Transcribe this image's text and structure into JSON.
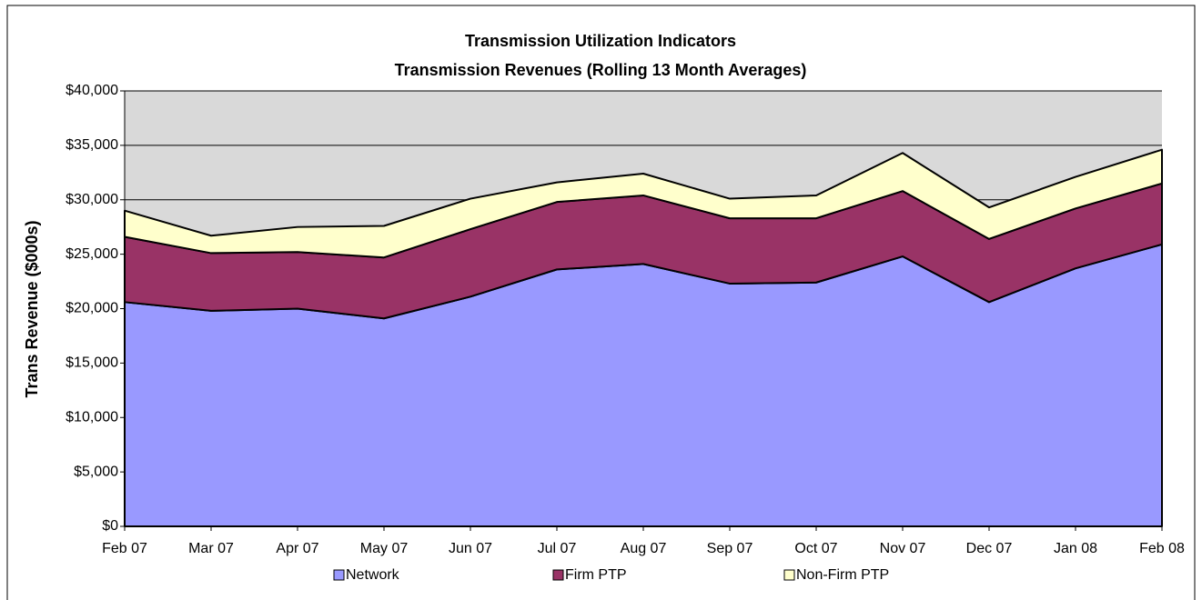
{
  "chart_data": {
    "type": "stacked_area",
    "title": "Transmission Utilization Indicators",
    "subtitle": "Transmission Revenues (Rolling 13 Month Averages)",
    "y_label": "Trans Revenue ($000s)",
    "categories": [
      "Feb 07",
      "Mar 07",
      "Apr 07",
      "May 07",
      "Jun 07",
      "Jul 07",
      "Aug 07",
      "Sep 07",
      "Oct 07",
      "Nov 07",
      "Dec 07",
      "Jan 08",
      "Feb 08"
    ],
    "series": [
      {
        "name": "Network",
        "color": "#9999ff",
        "values": [
          20600,
          19800,
          20000,
          19100,
          21100,
          23600,
          24100,
          22300,
          22400,
          24800,
          20600,
          23700,
          25900
        ]
      },
      {
        "name": "Firm PTP",
        "color": "#993366",
        "values": [
          6000,
          5300,
          5200,
          5600,
          6200,
          6200,
          6300,
          6000,
          5900,
          6000,
          5800,
          5500,
          5600
        ]
      },
      {
        "name": "Non-Firm PTP",
        "color": "#ffffcc",
        "values": [
          2400,
          1600,
          2300,
          2900,
          2800,
          1800,
          2000,
          1800,
          2100,
          3500,
          2900,
          2900,
          3100
        ]
      }
    ],
    "ylim": [
      0,
      40000
    ],
    "yticks": [
      {
        "value": 0,
        "label": "$0"
      },
      {
        "value": 5000,
        "label": "$5,000"
      },
      {
        "value": 10000,
        "label": "$10,000"
      },
      {
        "value": 15000,
        "label": "$15,000"
      },
      {
        "value": 20000,
        "label": "$20,000"
      },
      {
        "value": 25000,
        "label": "$25,000"
      },
      {
        "value": 30000,
        "label": "$30,000"
      },
      {
        "value": 35000,
        "label": "$35,000"
      },
      {
        "value": 40000,
        "label": "$40,000"
      }
    ],
    "grid": true,
    "legend": "bottom"
  }
}
